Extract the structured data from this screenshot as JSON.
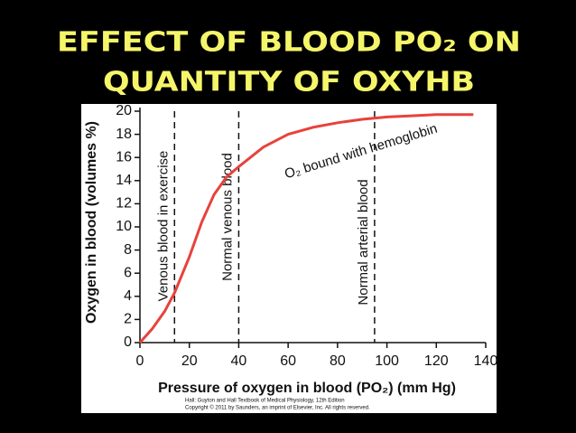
{
  "chart_data": {
    "type": "line",
    "title": [
      "EFFECT OF BLOOD PO₂ ON",
      "QUANTITY OF OXYHB"
    ],
    "x_label": "Pressure of oxygen in blood (PO₂) (mm Hg)",
    "y_label": "Oxygen in blood (volumes %)",
    "x": [
      0,
      5,
      10,
      14,
      20,
      25,
      30,
      35,
      40,
      50,
      60,
      70,
      80,
      90,
      100,
      110,
      120,
      135
    ],
    "values": [
      0,
      1.2,
      2.7,
      4.3,
      7.4,
      10.4,
      12.8,
      14.3,
      15.2,
      16.9,
      18.0,
      18.6,
      19.0,
      19.3,
      19.5,
      19.6,
      19.7,
      19.7
    ],
    "color": "#e8423c",
    "xlim": [
      0,
      140
    ],
    "xticks": [
      0,
      20,
      40,
      60,
      80,
      100,
      120,
      140
    ],
    "ylim": [
      0,
      20
    ],
    "yticks": [
      0,
      2,
      4,
      6,
      8,
      10,
      12,
      14,
      16,
      18,
      20
    ],
    "reference_lines": [
      {
        "x": 14,
        "label": "Venous blood in exercise"
      },
      {
        "x": 40,
        "label": "Normal venous blood"
      },
      {
        "x": 95,
        "label": "Normal arterial blood"
      }
    ],
    "annotation": "O₂ bound with hemoglobin",
    "credits": [
      "Hall: Guyton and Hall Textbook of Medical Physiology, 12th Edition",
      "Copyright © 2011 by Saunders, an imprint of Elsevier, Inc. All rights reserved."
    ]
  }
}
